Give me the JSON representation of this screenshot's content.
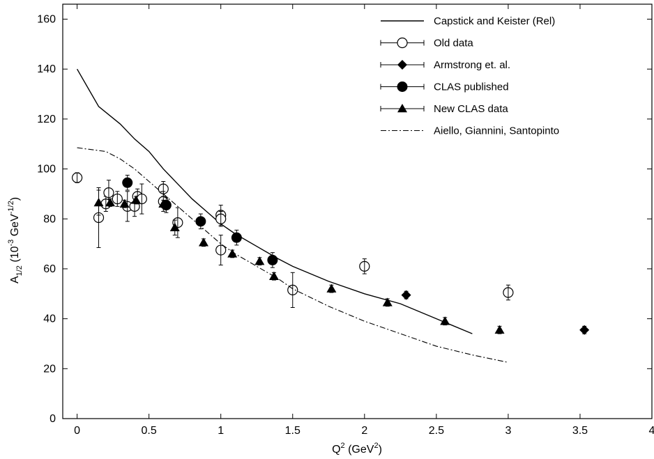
{
  "chart_data": {
    "type": "scatter",
    "xlabel": {
      "base": "Q",
      "sup": "2",
      "rest": " (GeV",
      "sup2": "2",
      "end": ")"
    },
    "ylabel": {
      "base": "A",
      "sub": "1/2",
      "mid": " (10",
      "sup": "-3",
      "mid2": " GeV",
      "sup2": "-1/2",
      "end": ")"
    },
    "xlim": [
      -0.1,
      4
    ],
    "ylim": [
      0,
      166
    ],
    "xticks": [
      0,
      0.5,
      1,
      1.5,
      2,
      2.5,
      3,
      3.5,
      4
    ],
    "yticks": [
      0,
      20,
      40,
      60,
      80,
      100,
      120,
      140,
      160
    ],
    "xtick_labels": [
      "0",
      "0.5",
      "1",
      "1.5",
      "2",
      "2.5",
      "3",
      "3.5",
      "4"
    ],
    "ytick_labels": [
      "0",
      "20",
      "40",
      "60",
      "80",
      "100",
      "120",
      "140",
      "160"
    ],
    "grid": false,
    "legend_position": "top-right",
    "series": [
      {
        "name": "Capstick and Keister (Rel)",
        "kind": "line",
        "style": "solid",
        "x": [
          0,
          0.15,
          0.3,
          0.4,
          0.5,
          0.6,
          0.7,
          0.8,
          0.9,
          1.0,
          1.1,
          1.25,
          1.4,
          1.5,
          1.75,
          2.0,
          2.25,
          2.5,
          2.75
        ],
        "y": [
          140,
          125,
          118,
          112,
          107,
          100,
          94,
          88,
          83,
          78,
          74,
          69,
          64,
          61,
          55,
          50,
          46,
          40,
          34
        ]
      },
      {
        "name": "Old data",
        "kind": "points",
        "marker": "open-circle",
        "x": [
          0,
          0.15,
          0.2,
          0.22,
          0.28,
          0.35,
          0.4,
          0.42,
          0.45,
          0.6,
          0.6,
          0.7,
          1.0,
          1.0,
          1.0,
          1.5,
          2.0,
          3.0
        ],
        "y": [
          96.5,
          80.5,
          86,
          90.5,
          88,
          85,
          85,
          89,
          88,
          92,
          87,
          78.5,
          81.5,
          80,
          67.5,
          51.5,
          61,
          50.5
        ],
        "err": [
          2,
          12,
          3,
          5,
          3,
          6,
          4,
          3,
          6,
          3,
          4,
          6,
          4,
          3,
          6,
          7,
          3,
          3
        ]
      },
      {
        "name": "Armstrong et. al.",
        "kind": "points",
        "marker": "filled-diamond",
        "x": [
          2.29,
          3.53
        ],
        "y": [
          49.5,
          35.5
        ],
        "err": [
          1.5,
          1.5
        ]
      },
      {
        "name": "CLAS published",
        "kind": "points",
        "marker": "filled-circle",
        "x": [
          0.35,
          0.62,
          0.86,
          1.11,
          1.36
        ],
        "y": [
          94.5,
          85.5,
          79,
          72.5,
          63.5
        ],
        "err": [
          3,
          3,
          3,
          3,
          3
        ]
      },
      {
        "name": "New CLAS data",
        "kind": "points",
        "marker": "filled-triangle",
        "x": [
          0.15,
          0.23,
          0.33,
          0.41,
          0.6,
          0.68,
          0.88,
          1.08,
          1.27,
          1.37,
          1.77,
          2.16,
          2.56,
          2.94
        ],
        "y": [
          86.5,
          86.5,
          86,
          87.5,
          86,
          76.5,
          70.5,
          66,
          63,
          57,
          52,
          46.5,
          39,
          35.5
        ],
        "err": [
          5,
          1.5,
          1.5,
          1.5,
          1.5,
          3,
          1.5,
          1.5,
          1.5,
          1.5,
          1.5,
          1.5,
          1.5,
          1.5
        ]
      },
      {
        "name": "Aiello, Giannini, Santopinto",
        "kind": "line",
        "style": "dashdot",
        "x": [
          0,
          0.2,
          0.3,
          0.4,
          0.5,
          0.6,
          0.7,
          0.8,
          0.9,
          1.0,
          1.1,
          1.25,
          1.4,
          1.5,
          1.75,
          2.0,
          2.25,
          2.5,
          2.75,
          3.0
        ],
        "y": [
          108.5,
          107,
          104,
          100,
          95,
          90,
          85,
          80,
          75,
          70,
          66,
          61,
          56,
          52,
          45,
          39,
          34,
          29,
          25.5,
          22.5
        ]
      }
    ]
  }
}
